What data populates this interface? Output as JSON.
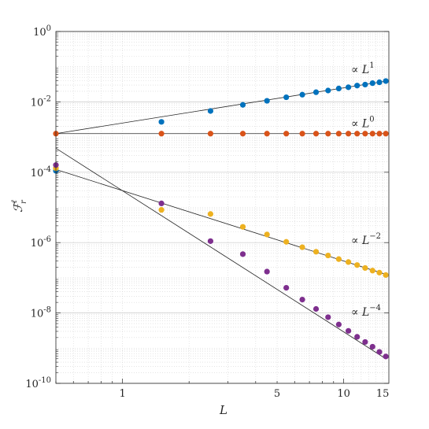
{
  "chart_data": {
    "type": "scatter",
    "xscale": "log",
    "yscale": "log",
    "xlim": [
      0.5,
      16
    ],
    "ylim": [
      1e-10,
      1
    ],
    "grid": true,
    "xlabel": "L",
    "ylabel": "ℱ",
    "ylabel_sup": "ℓ",
    "ylabel_sub": "r",
    "x_ticks": [
      {
        "value": 1,
        "label": "1"
      },
      {
        "value": 5,
        "label": "5"
      },
      {
        "value": 10,
        "label": "10"
      },
      {
        "value": 15,
        "label": "15"
      }
    ],
    "y_ticks": [
      {
        "value": 1,
        "base": "10",
        "exp": "0"
      },
      {
        "value": 0.01,
        "base": "10",
        "exp": "-2"
      },
      {
        "value": 0.0001,
        "base": "10",
        "exp": "-4"
      },
      {
        "value": 1e-06,
        "base": "10",
        "exp": "-6"
      },
      {
        "value": 1e-08,
        "base": "10",
        "exp": "-8"
      },
      {
        "value": 1e-10,
        "base": "10",
        "exp": "-10"
      }
    ],
    "x": [
      0.5,
      1.5,
      2.5,
      3.5,
      4.5,
      5.5,
      6.5,
      7.5,
      8.5,
      9.5,
      10.5,
      11.5,
      12.5,
      13.5,
      14.5,
      15.5
    ],
    "series": [
      {
        "color": "#0072BD",
        "values": [
          0.00011,
          0.0027,
          0.0055,
          0.0082,
          0.0107,
          0.0135,
          0.016,
          0.0188,
          0.021,
          0.024,
          0.026,
          0.029,
          0.031,
          0.034,
          0.036,
          0.039
        ]
      },
      {
        "color": "#D95319",
        "values": [
          0.00125,
          0.00125,
          0.00125,
          0.00125,
          0.00125,
          0.00125,
          0.00125,
          0.00125,
          0.00125,
          0.00125,
          0.00125,
          0.00125,
          0.00125,
          0.00125,
          0.00125,
          0.00125
        ]
      },
      {
        "color": "#EDB120",
        "values": [
          0.00013,
          8.5e-06,
          6.5e-06,
          2.8e-06,
          1.7e-06,
          1.05e-06,
          7.4e-07,
          5.5e-07,
          4.3e-07,
          3.4e-07,
          2.8e-07,
          2.3e-07,
          1.9e-07,
          1.6e-07,
          1.4e-07,
          1.2e-07
        ]
      },
      {
        "color": "#7E2F8E",
        "values": [
          0.00016,
          1.3e-05,
          1.1e-06,
          4.7e-07,
          1.5e-07,
          5.2e-08,
          2.4e-08,
          1.3e-08,
          7.6e-09,
          4.7e-09,
          3.1e-09,
          2.1e-09,
          1.5e-09,
          1.1e-09,
          7.8e-10,
          5.8e-10
        ]
      }
    ],
    "trend_lines": [
      {
        "label": "∝ L",
        "power": "1",
        "x": [
          0.5,
          15.5
        ],
        "y": [
          0.00125,
          0.03875
        ],
        "label_at": [
          10.8,
          0.065
        ]
      },
      {
        "label": "∝ L",
        "power": "0",
        "x": [
          0.5,
          15.5
        ],
        "y": [
          0.00125,
          0.00125
        ],
        "label_at": [
          10.8,
          0.0019
        ]
      },
      {
        "label": "∝ L",
        "power": "−2",
        "x": [
          0.5,
          15.5
        ],
        "y": [
          0.00012,
          1.25e-07
        ],
        "label_at": [
          10.8,
          9e-07
        ]
      },
      {
        "label": "∝ L",
        "power": "−4",
        "x": [
          0.5,
          15.5
        ],
        "y": [
          0.00048,
          5e-10
        ],
        "label_at": [
          10.8,
          8.5e-09
        ]
      }
    ]
  }
}
